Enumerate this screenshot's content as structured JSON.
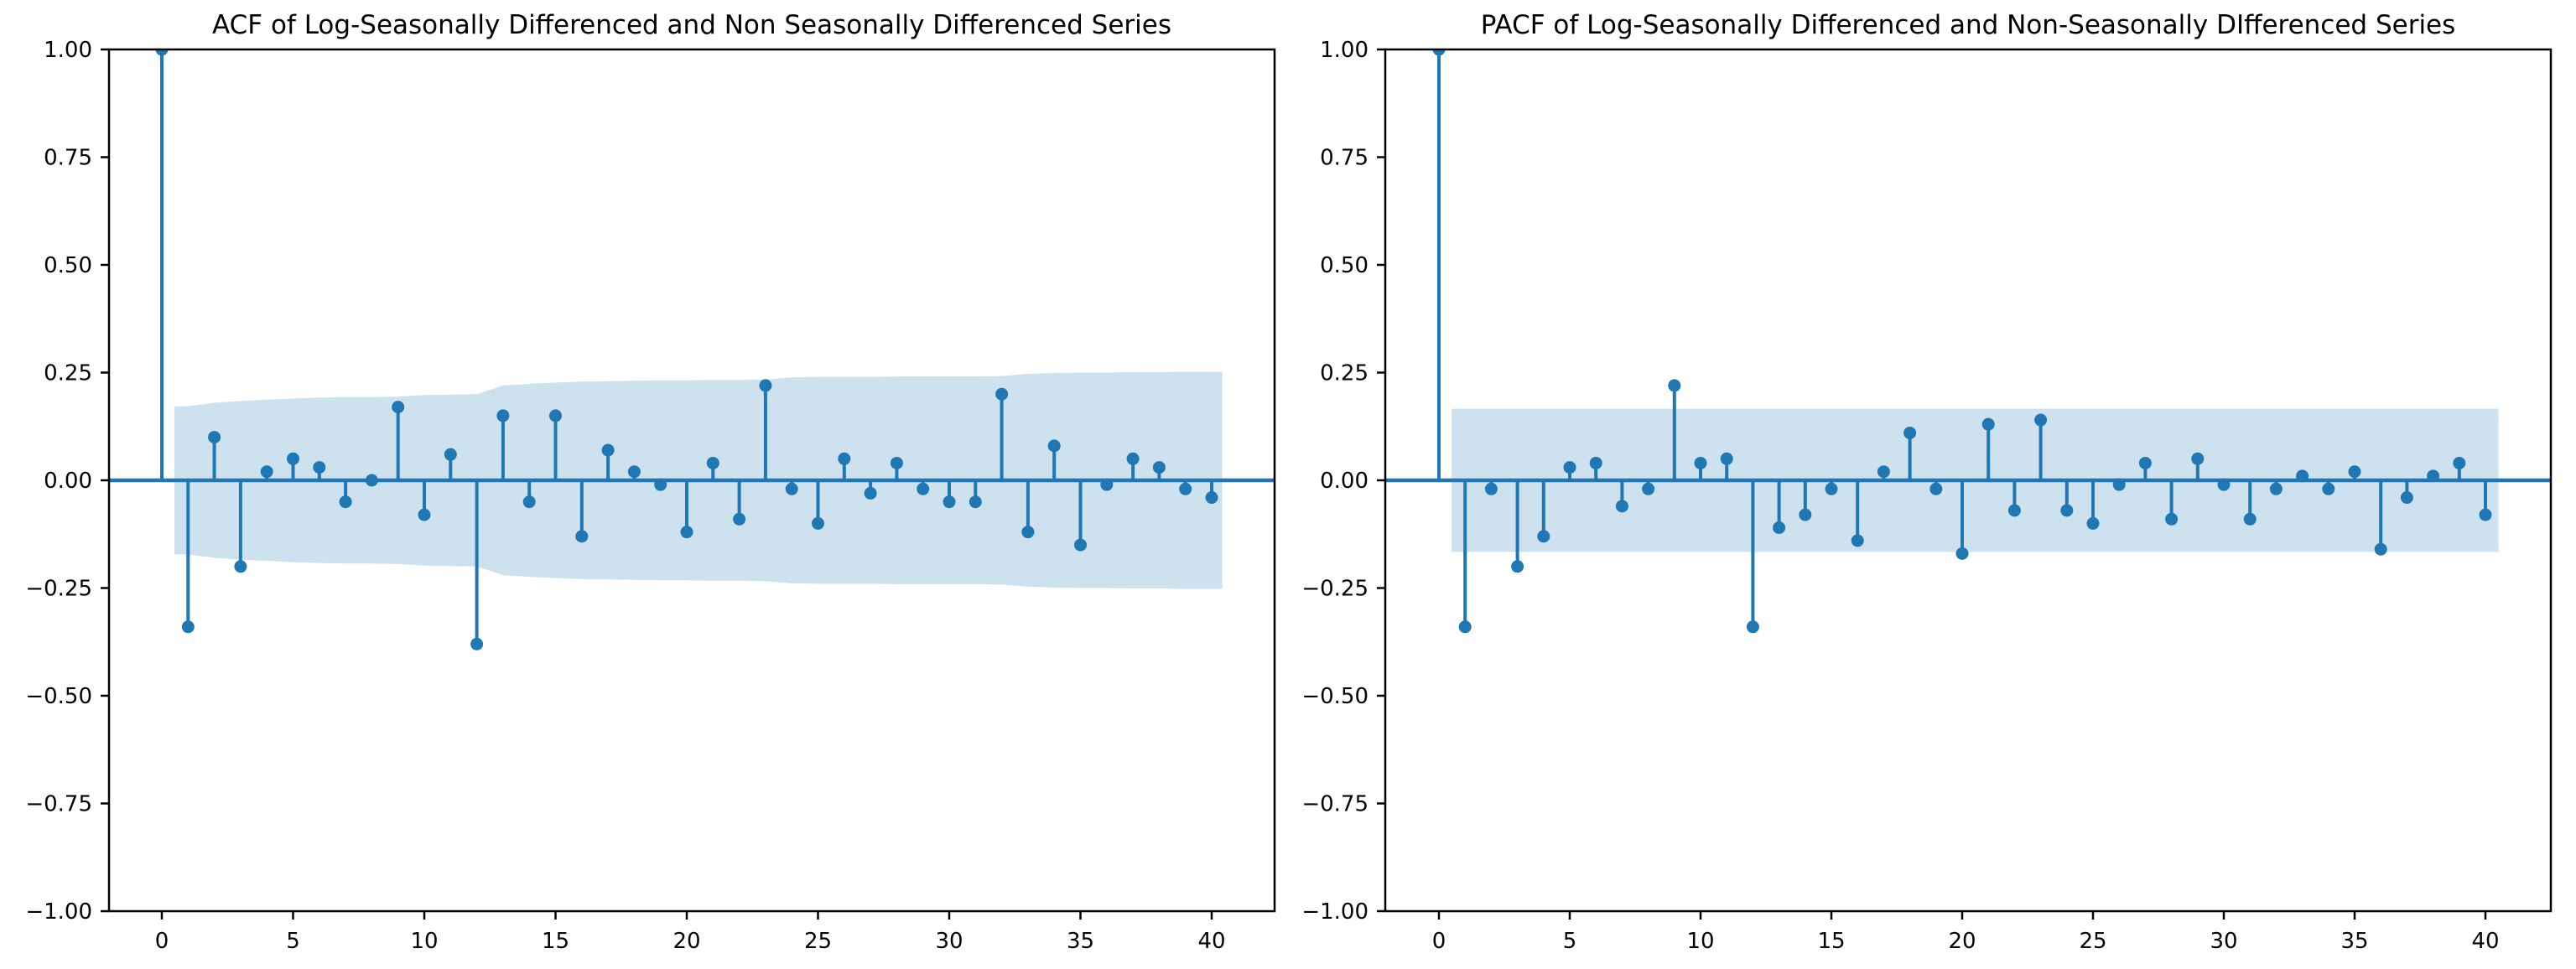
{
  "figure": {
    "background": "#ffffff"
  },
  "colors": {
    "stem": "#1f77b4",
    "marker": "#1f77b4",
    "band_fill": "#1f77b4",
    "band_opacity": 0.22,
    "axis": "#000000",
    "text": "#000000"
  },
  "chart_data": [
    {
      "type": "stem",
      "kind": "acf",
      "title": "ACF of Log-Seasonally Differenced and Non Seasonally Differenced Series",
      "lags": [
        0,
        1,
        2,
        3,
        4,
        5,
        6,
        7,
        8,
        9,
        10,
        11,
        12,
        13,
        14,
        15,
        16,
        17,
        18,
        19,
        20,
        21,
        22,
        23,
        24,
        25,
        26,
        27,
        28,
        29,
        30,
        31,
        32,
        33,
        34,
        35,
        36,
        37,
        38,
        39,
        40
      ],
      "values": [
        1.0,
        -0.34,
        0.1,
        -0.2,
        0.02,
        0.05,
        0.03,
        -0.05,
        0.0,
        0.17,
        -0.08,
        0.06,
        -0.38,
        0.15,
        -0.05,
        0.15,
        -0.13,
        0.07,
        0.02,
        -0.01,
        -0.12,
        0.04,
        -0.09,
        0.22,
        -0.02,
        -0.1,
        0.05,
        -0.03,
        0.04,
        -0.02,
        -0.05,
        -0.05,
        0.2,
        -0.12,
        0.08,
        -0.15,
        -0.01,
        0.05,
        0.03,
        -0.02,
        -0.04
      ],
      "conf_upper": [
        0.172,
        0.18,
        0.184,
        0.187,
        0.19,
        0.192,
        0.193,
        0.193,
        0.194,
        0.198,
        0.199,
        0.2,
        0.22,
        0.224,
        0.227,
        0.229,
        0.23,
        0.231,
        0.232,
        0.232,
        0.233,
        0.233,
        0.234,
        0.239,
        0.24,
        0.24,
        0.24,
        0.241,
        0.241,
        0.241,
        0.241,
        0.242,
        0.247,
        0.249,
        0.25,
        0.25,
        0.251,
        0.251,
        0.252,
        0.252
      ],
      "band_lag_range": [
        0.48,
        40.4
      ],
      "ylim": [
        -1.0,
        1.0
      ],
      "ytick_values": [
        1.0,
        0.75,
        0.5,
        0.25,
        0.0,
        -0.25,
        -0.5,
        -0.75,
        -1.0
      ],
      "ytick_labels": [
        "1.00",
        "0.75",
        "0.50",
        "0.25",
        "0.00",
        "−0.25",
        "−0.50",
        "−0.75",
        "−1.00"
      ],
      "xtick_values": [
        0,
        5,
        10,
        15,
        20,
        25,
        30,
        35,
        40
      ],
      "xtick_labels": [
        "0",
        "5",
        "10",
        "15",
        "20",
        "25",
        "30",
        "35",
        "40"
      ],
      "grid": false,
      "legend": null
    },
    {
      "type": "stem",
      "kind": "pacf",
      "title": "PACF of Log-Seasonally Differenced and Non-Seasonally DIfferenced Series",
      "lags": [
        0,
        1,
        2,
        3,
        4,
        5,
        6,
        7,
        8,
        9,
        10,
        11,
        12,
        13,
        14,
        15,
        16,
        17,
        18,
        19,
        20,
        21,
        22,
        23,
        24,
        25,
        26,
        27,
        28,
        29,
        30,
        31,
        32,
        33,
        34,
        35,
        36,
        37,
        38,
        39,
        40
      ],
      "values": [
        1.0,
        -0.34,
        -0.02,
        -0.2,
        -0.13,
        0.03,
        0.04,
        -0.06,
        -0.02,
        0.22,
        0.04,
        0.05,
        -0.34,
        -0.11,
        -0.08,
        -0.02,
        -0.14,
        0.02,
        0.11,
        -0.02,
        -0.17,
        0.13,
        -0.07,
        0.14,
        -0.07,
        -0.1,
        -0.01,
        0.04,
        -0.09,
        0.05,
        -0.01,
        -0.09,
        -0.02,
        0.01,
        -0.02,
        0.02,
        -0.16,
        -0.04,
        0.01,
        0.04,
        -0.08
      ],
      "conf_upper": [
        0.166,
        0.166,
        0.166,
        0.166,
        0.166,
        0.166,
        0.166,
        0.166,
        0.166,
        0.166,
        0.166,
        0.166,
        0.166,
        0.166,
        0.166,
        0.166,
        0.166,
        0.166,
        0.166,
        0.166,
        0.166,
        0.166,
        0.166,
        0.166,
        0.166,
        0.166,
        0.166,
        0.166,
        0.166,
        0.166,
        0.166,
        0.166,
        0.166,
        0.166,
        0.166,
        0.166,
        0.166,
        0.166,
        0.166,
        0.166
      ],
      "band_lag_range": [
        0.48,
        40.5
      ],
      "ylim": [
        -1.0,
        1.0
      ],
      "ytick_values": [
        1.0,
        0.75,
        0.5,
        0.25,
        0.0,
        -0.25,
        -0.5,
        -0.75,
        -1.0
      ],
      "ytick_labels": [
        "1.00",
        "0.75",
        "0.50",
        "0.25",
        "0.00",
        "−0.25",
        "−0.50",
        "−0.75",
        "−1.00"
      ],
      "xtick_values": [
        0,
        5,
        10,
        15,
        20,
        25,
        30,
        35,
        40
      ],
      "xtick_labels": [
        "0",
        "5",
        "10",
        "15",
        "20",
        "25",
        "30",
        "35",
        "40"
      ],
      "grid": false,
      "legend": null
    }
  ]
}
